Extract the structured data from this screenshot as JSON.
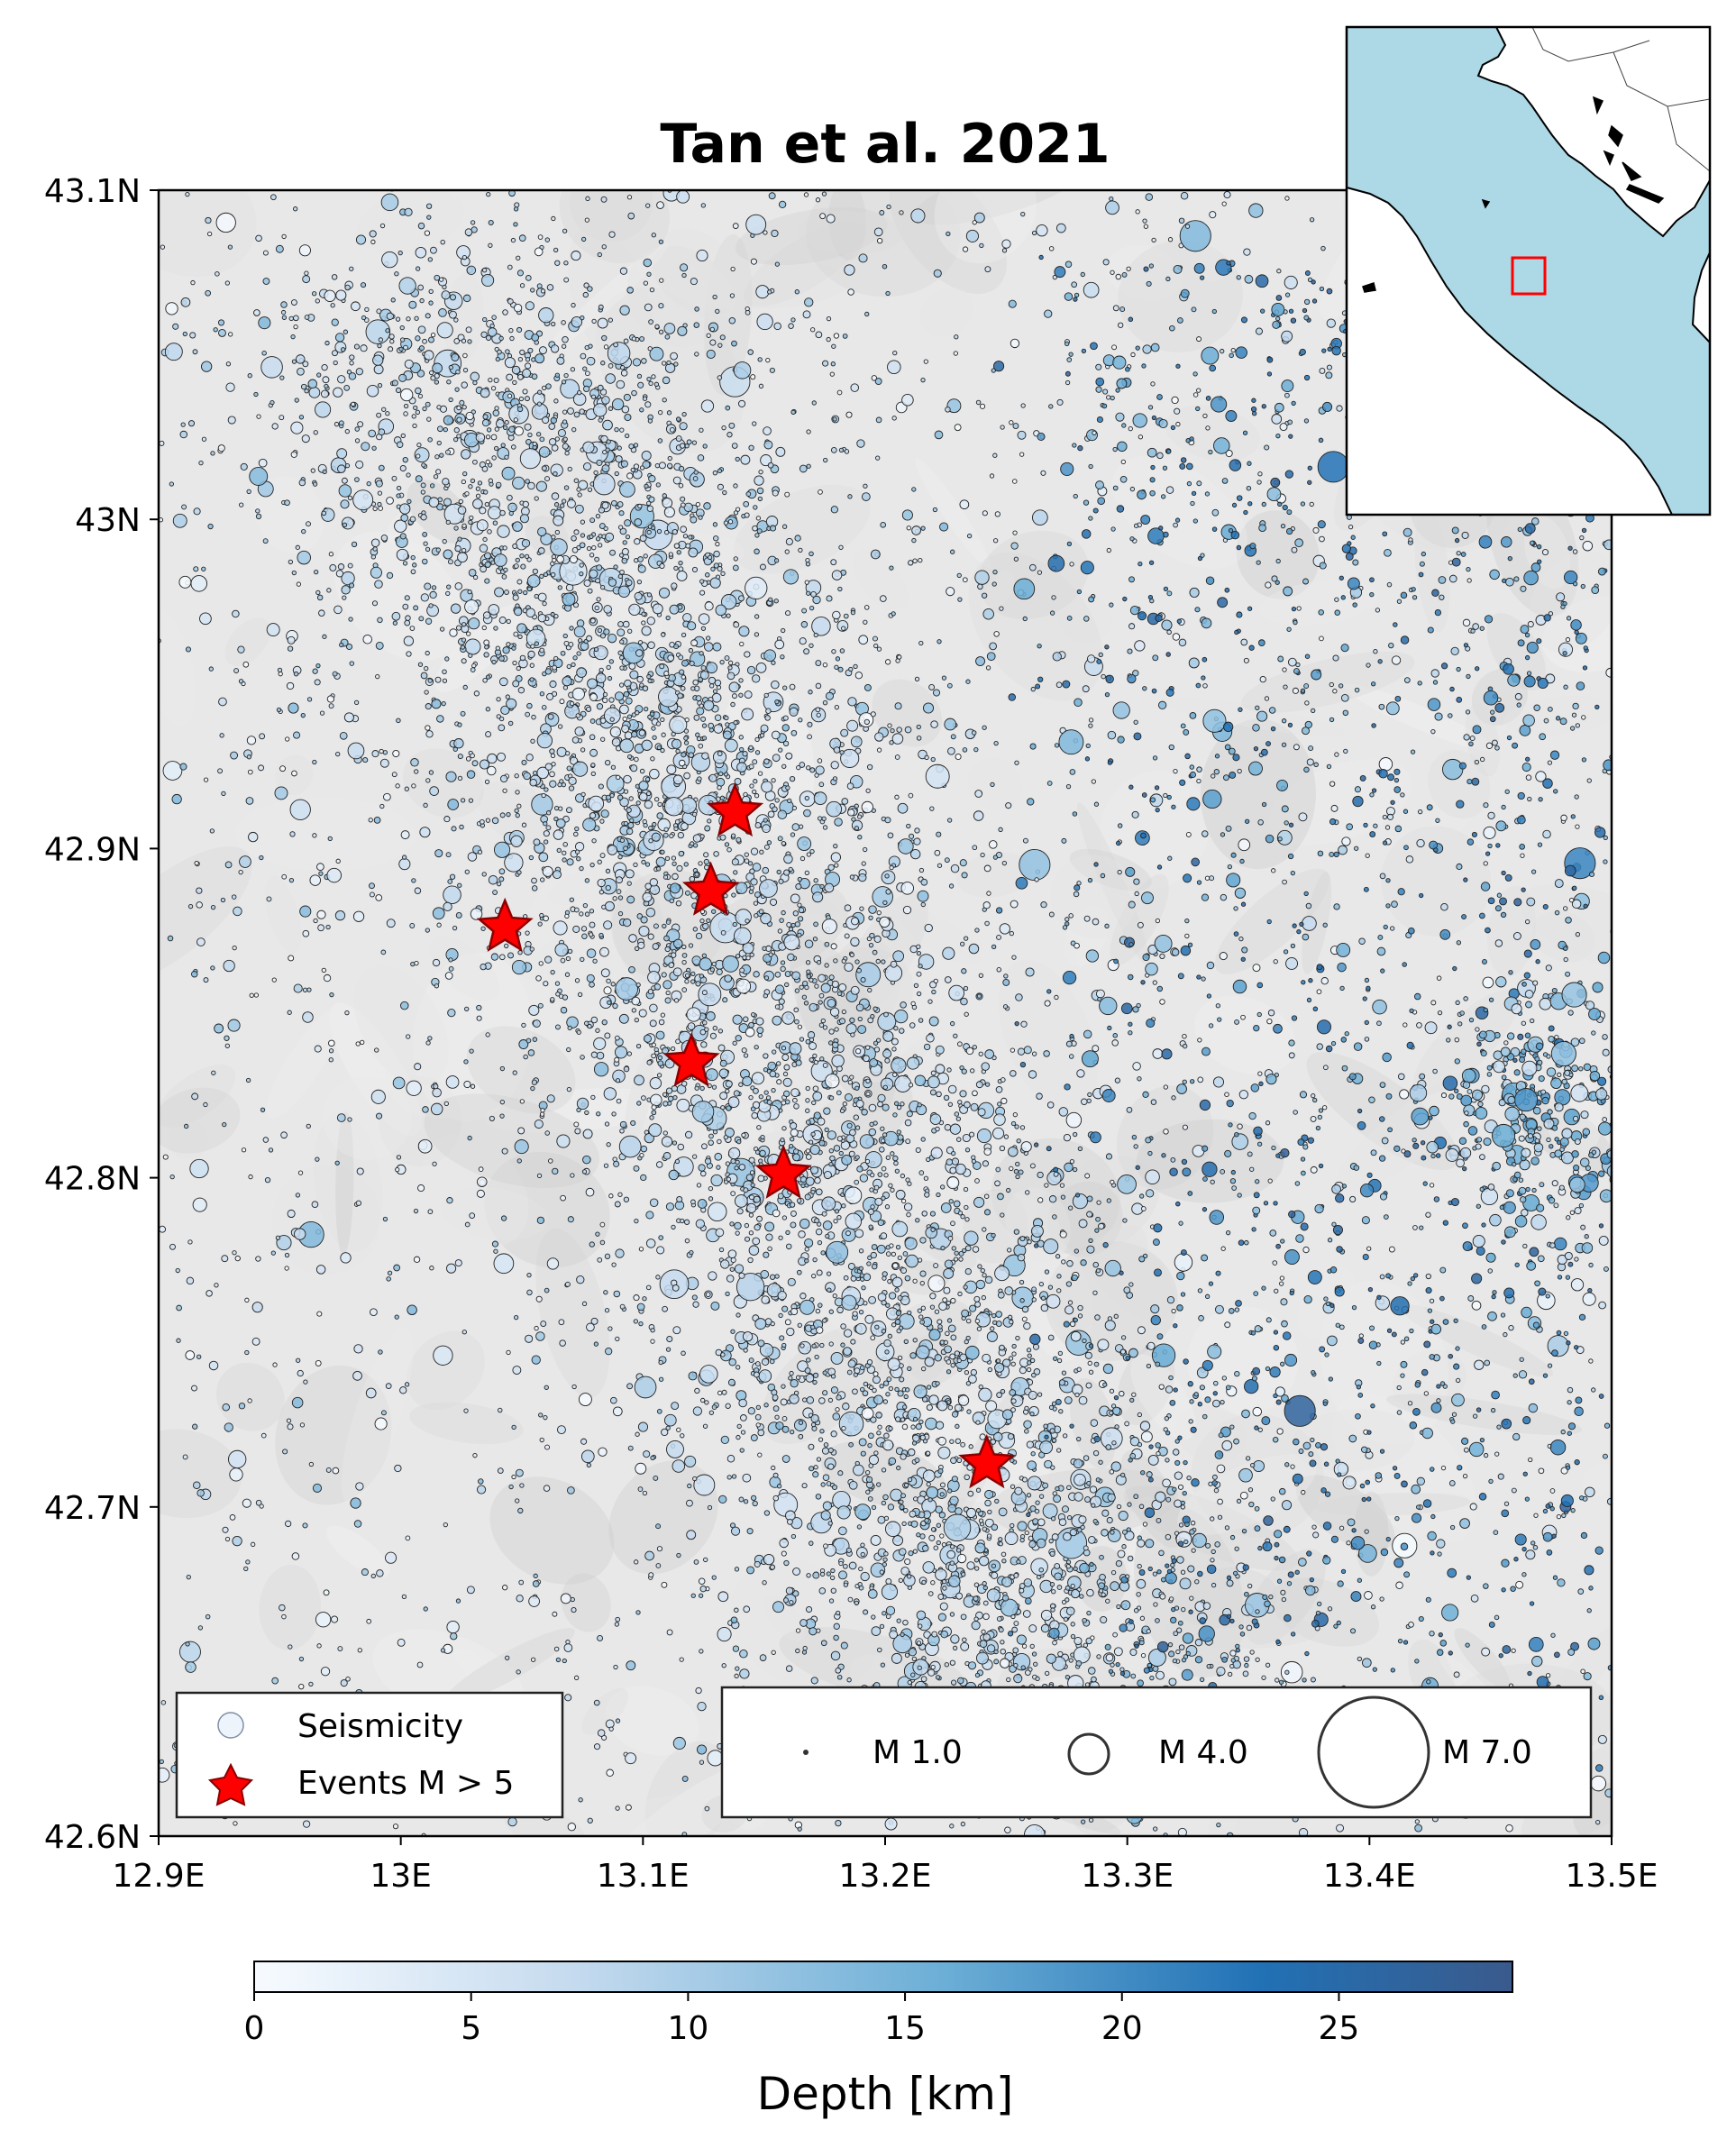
{
  "title": "Tan et al. 2021",
  "map": {
    "lon_range": [
      12.9,
      13.5
    ],
    "lat_range": [
      42.6,
      43.1
    ],
    "x_ticks": [
      {
        "value": 12.9,
        "label": "12.9E"
      },
      {
        "value": 13.0,
        "label": "13E"
      },
      {
        "value": 13.1,
        "label": "13.1E"
      },
      {
        "value": 13.2,
        "label": "13.2E"
      },
      {
        "value": 13.3,
        "label": "13.3E"
      },
      {
        "value": 13.4,
        "label": "13.4E"
      },
      {
        "value": 13.5,
        "label": "13.5E"
      }
    ],
    "y_ticks": [
      {
        "value": 43.1,
        "label": "43.1N"
      },
      {
        "value": 43.0,
        "label": "43N"
      },
      {
        "value": 42.9,
        "label": "42.9N"
      },
      {
        "value": 42.8,
        "label": "42.8N"
      },
      {
        "value": 42.7,
        "label": "42.7N"
      },
      {
        "value": 42.6,
        "label": "42.6N"
      }
    ],
    "background": "grey shaded relief",
    "seismicity": "dense cloud of circles sized by magnitude and colored by depth, concentrated in a NW–SE band"
  },
  "events": [
    {
      "lon": 13.138,
      "lat": 42.911
    },
    {
      "lon": 13.128,
      "lat": 42.887
    },
    {
      "lon": 13.043,
      "lat": 42.876
    },
    {
      "lon": 13.12,
      "lat": 42.835
    },
    {
      "lon": 13.158,
      "lat": 42.801
    },
    {
      "lon": 13.242,
      "lat": 42.713
    }
  ],
  "legend": {
    "location": "lower-left",
    "items": [
      {
        "label": "Seismicity",
        "marker": "circle"
      },
      {
        "label": "Events M > 5",
        "marker": "red star"
      }
    ]
  },
  "size_legend": {
    "location": "lower-right",
    "items": [
      {
        "label": "M 1.0",
        "magnitude": 1.0
      },
      {
        "label": "M 4.0",
        "magnitude": 4.0
      },
      {
        "label": "M 7.0",
        "magnitude": 7.0
      }
    ]
  },
  "inset": {
    "location": "upper-right",
    "content": "Italy and Adriatic Sea with red box marking study area",
    "sea_color": "#add8e6",
    "land_color": "#ffffff",
    "box_color": "#ff0000"
  },
  "colorbar": {
    "label": "Depth [km]",
    "range": [
      0,
      29
    ],
    "ticks": [
      {
        "value": 0,
        "label": "0"
      },
      {
        "value": 5,
        "label": "5"
      },
      {
        "value": 10,
        "label": "10"
      },
      {
        "value": 15,
        "label": "15"
      },
      {
        "value": 20,
        "label": "20"
      },
      {
        "value": 25,
        "label": "25"
      }
    ],
    "colormap": "Blues",
    "colors": [
      "#f7fbff",
      "#c6dbef",
      "#6baed6",
      "#2171b5",
      "#3a5a8c"
    ]
  },
  "colors": {
    "star_fill": "#ff0000",
    "star_edge": "#8b0000",
    "circle_edge": "#222222"
  }
}
